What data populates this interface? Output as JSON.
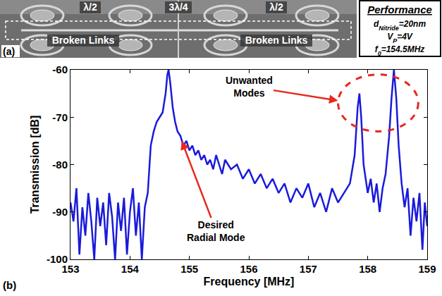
{
  "panel_a": {
    "label": "(a)",
    "labels": [
      "λ/2",
      "3λ/4",
      "λ/2",
      "Broken Links",
      "Broken Links"
    ]
  },
  "performance": {
    "title": "Performance",
    "lines": [
      {
        "symbol": "d",
        "subscript": "Nitride",
        "text": "=20nm"
      },
      {
        "symbol": "V",
        "subscript": "P",
        "text": "=4V"
      },
      {
        "symbol": "f",
        "subscript": "0",
        "text": "=154.5MHz"
      }
    ]
  },
  "panel_b": {
    "label": "(b)"
  },
  "chart_data": {
    "type": "line",
    "x_label": "Frequency [MHz]",
    "y_label": "Transmission [dB]",
    "color": "#1a1adb",
    "grid": false,
    "xlim": [
      153,
      159
    ],
    "xticks": [
      153,
      154,
      155,
      156,
      157,
      158,
      159
    ],
    "ylim": [
      -100,
      -60
    ],
    "yticks": [
      -100,
      -90,
      -80,
      -70,
      -60
    ],
    "x": [
      153.0,
      153.05,
      153.1,
      153.15,
      153.2,
      153.25,
      153.3,
      153.35,
      153.4,
      153.45,
      153.5,
      153.55,
      153.6,
      153.65,
      153.7,
      153.75,
      153.8,
      153.85,
      153.9,
      153.95,
      154.0,
      154.05,
      154.1,
      154.15,
      154.2,
      154.25,
      154.3,
      154.35,
      154.4,
      154.45,
      154.5,
      154.55,
      154.6,
      154.63,
      154.65,
      154.68,
      154.72,
      154.76,
      154.8,
      154.85,
      154.9,
      154.95,
      155.0,
      155.05,
      155.1,
      155.15,
      155.2,
      155.25,
      155.3,
      155.35,
      155.4,
      155.45,
      155.5,
      155.55,
      155.6,
      155.7,
      155.8,
      155.9,
      156.0,
      156.1,
      156.2,
      156.3,
      156.4,
      156.5,
      156.6,
      156.7,
      156.8,
      156.9,
      157.0,
      157.1,
      157.2,
      157.3,
      157.4,
      157.5,
      157.6,
      157.7,
      157.78,
      157.83,
      157.86,
      157.89,
      157.93,
      158.0,
      158.05,
      158.1,
      158.15,
      158.2,
      158.25,
      158.3,
      158.36,
      158.4,
      158.44,
      158.48,
      158.52,
      158.57,
      158.62,
      158.67,
      158.72,
      158.77,
      158.82,
      158.87,
      158.92,
      158.96,
      159.0
    ],
    "values": [
      -88,
      -92,
      -85,
      -99,
      -89,
      -95,
      -86,
      -92,
      -100,
      -87,
      -93,
      -88,
      -97,
      -86,
      -91,
      -100,
      -88,
      -94,
      -87,
      -99,
      -90,
      -85,
      -95,
      -88,
      -100,
      -89,
      -86,
      -76,
      -73,
      -71,
      -70,
      -69,
      -65,
      -61,
      -60,
      -63,
      -68,
      -71,
      -73,
      -74,
      -76,
      -75,
      -77,
      -76,
      -78,
      -77,
      -79,
      -78,
      -80,
      -79,
      -81,
      -78,
      -80,
      -82,
      -79,
      -81,
      -80,
      -83,
      -81,
      -84,
      -82,
      -85,
      -83,
      -86,
      -84,
      -88,
      -85,
      -87,
      -84,
      -89,
      -86,
      -90,
      -85,
      -88,
      -86,
      -84,
      -78,
      -68,
      -65,
      -70,
      -80,
      -86,
      -83,
      -88,
      -84,
      -90,
      -85,
      -82,
      -74,
      -66,
      -60,
      -66,
      -76,
      -84,
      -89,
      -85,
      -95,
      -87,
      -92,
      -86,
      -98,
      -88,
      -93
    ],
    "annotations": [
      {
        "text": "Desired Radial Mode",
        "x": 155.45,
        "y": -94,
        "arrow_to": [
          154.87,
          -75
        ]
      },
      {
        "text": "Unwanted Modes",
        "x": 156.0,
        "y": -63.5,
        "arrow_to": [
          157.5,
          -66.5
        ]
      }
    ],
    "highlight": {
      "x": [
        157.5,
        158.85
      ],
      "y": [
        -73,
        -61
      ]
    }
  }
}
